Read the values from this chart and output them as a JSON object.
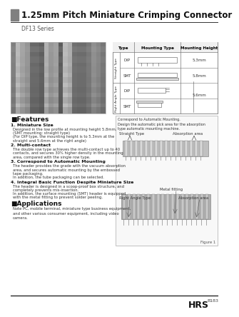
{
  "title": "1.25mm Pitch Miniature Crimping Connector",
  "series": "DF13 Series",
  "bg_color": "#ffffff",
  "header_bar_color": "#808080",
  "title_color": "#000000",
  "series_color": "#555555",
  "footer_line_color": "#000000",
  "brand": "HRS",
  "page_num": "B183",
  "features_title": "■Features",
  "applications_title": "■Applications",
  "applications_text": "Note PC, mobile terminal, miniature type business equipment,\nand other various consumer equipment, including video\ncamera.",
  "table_title_type": "Type",
  "table_title_mounting": "Mounting Type",
  "table_title_height": "Mounting Height",
  "table_row1_label": "DIP",
  "table_row2_label": "SMT",
  "table_row3_label": "DIP",
  "table_row4_label": "SMT",
  "table_height1": "5.3mm",
  "table_height2": "5.8mm",
  "table_height34": "5.6mm",
  "table_straight": "Straight Type",
  "table_rightangle": "Right Angle Type",
  "right_panel_caption": "Correspond to Automatic Mounting.\nDesign the automatic pick area for the absorption\ntype automatic mounting machine.",
  "fig_label": "Figure 1",
  "straight_type_label": "Straight Type",
  "absorption_area_label": "Absorption area",
  "right_angle_type_label": "Right Angle Type",
  "metal_fitting_label": "Metal fitting",
  "absorption_area2_label": "Absorption area",
  "f1_title": "1. Miniature Size",
  "f1_body": "Designed in the low profile at mounting height 5.8mm.\n(SMT mounting: straight type)\n(For DIP type, the mounting height is to 5.3mm at the\nstraight and 5.6mm at the right angle)",
  "f2_title": "2. Multi-contact",
  "f2_body": "The double row type achieves the multi-contact up to 40\ncontacts, and secures 30% higher density in the mounting\narea, compared with the single row type.",
  "f3_title": "3. Correspond to Automatic Mounting",
  "f3_body": "The header provides the grade with the vacuum absorption\narea, and secures automatic mounting by the embossed\ntape packaging.\nIn addition, the tube packaging can be selected.",
  "f4_title": "4. Integral Basic Function Despite Miniature Size",
  "f4_body": "The header is designed in a scoop-proof box structure, and\ncompletely prevents mis-insertion.\nIn addition, the surface mounting (SMT) header is equipped\nwith the metal fitting to prevent solder peeling."
}
